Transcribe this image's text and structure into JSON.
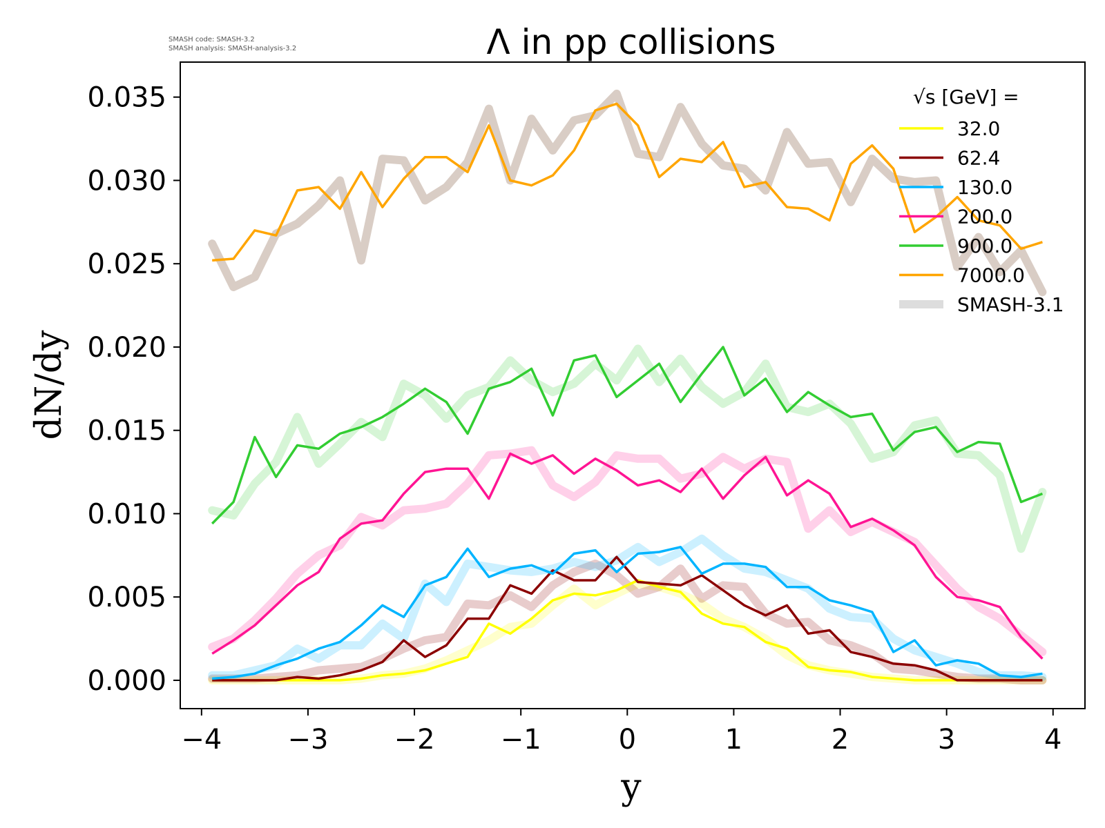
{
  "chart_data": {
    "type": "line",
    "title": "Λ in pp collisions",
    "xlabel": "y",
    "ylabel": "dN/dy",
    "xlim": [
      -4.2,
      4.3
    ],
    "ylim": [
      -0.0017,
      0.0371
    ],
    "xticks": [
      -4,
      -3,
      -2,
      -1,
      0,
      1,
      2,
      3,
      4
    ],
    "xtick_labels": [
      "−4",
      "−3",
      "−2",
      "−1",
      "0",
      "1",
      "2",
      "3",
      "4"
    ],
    "yticks": [
      0.0,
      0.005,
      0.01,
      0.015,
      0.02,
      0.025,
      0.03,
      0.035
    ],
    "ytick_labels": [
      "0.000",
      "0.005",
      "0.010",
      "0.015",
      "0.020",
      "0.025",
      "0.030",
      "0.035"
    ],
    "grid": false,
    "legend_position": "top-right",
    "legend_title": "√s  [GeV] =",
    "version_info": [
      "SMASH code:      SMASH-3.2",
      "SMASH analysis: SMASH-analysis-3.2"
    ],
    "x": [
      -3.9,
      -3.7,
      -3.5,
      -3.3,
      -3.1,
      -2.9,
      -2.7,
      -2.5,
      -2.3,
      -2.1,
      -1.9,
      -1.7,
      -1.5,
      -1.3,
      -1.1,
      -0.9,
      -0.7,
      -0.5,
      -0.3,
      -0.1,
      0.1,
      0.3,
      0.5,
      0.7,
      0.9,
      1.1,
      1.3,
      1.5,
      1.7,
      1.9,
      2.1,
      2.3,
      2.5,
      2.7,
      2.9,
      3.1,
      3.3,
      3.5,
      3.7,
      3.9
    ],
    "series": [
      {
        "name": "32.0",
        "color": "#ffff00",
        "values": [
          0,
          0,
          0,
          0,
          0,
          0,
          0,
          0.0001,
          0.0003,
          0.0004,
          0.0006,
          0.001,
          0.0014,
          0.0034,
          0.0028,
          0.0037,
          0.0048,
          0.0052,
          0.0051,
          0.0054,
          0.006,
          0.0056,
          0.0053,
          0.004,
          0.0034,
          0.0032,
          0.0023,
          0.0019,
          0.0008,
          0.0006,
          0.0005,
          0.0002,
          0.0001,
          0,
          0,
          0,
          0,
          0,
          0,
          0
        ]
      },
      {
        "name": "62.4",
        "color": "#8b0000",
        "values": [
          0,
          0,
          0,
          0,
          0.0002,
          0.0001,
          0.0003,
          0.0006,
          0.0011,
          0.0024,
          0.0014,
          0.0021,
          0.0037,
          0.0037,
          0.0057,
          0.0052,
          0.0066,
          0.006,
          0.006,
          0.0074,
          0.0059,
          0.0058,
          0.0057,
          0.0063,
          0.0054,
          0.0045,
          0.0039,
          0.0045,
          0.0028,
          0.003,
          0.0017,
          0.0014,
          0.001,
          0.0009,
          0.0006,
          0,
          0,
          0,
          0,
          0
        ]
      },
      {
        "name": "130.0",
        "color": "#00b4ff",
        "values": [
          0.0001,
          0.0002,
          0.0004,
          0.0009,
          0.0013,
          0.0019,
          0.0023,
          0.0033,
          0.0045,
          0.0038,
          0.0057,
          0.0062,
          0.0079,
          0.0062,
          0.0067,
          0.0069,
          0.0064,
          0.0076,
          0.0078,
          0.0065,
          0.0076,
          0.0077,
          0.008,
          0.0064,
          0.007,
          0.007,
          0.0068,
          0.0056,
          0.0056,
          0.0048,
          0.0045,
          0.0041,
          0.0017,
          0.0024,
          0.0009,
          0.0012,
          0.001,
          0.0003,
          0.0002,
          0.0004
        ]
      },
      {
        "name": "200.0",
        "color": "#ff1493",
        "values": [
          0.0016,
          0.0024,
          0.0033,
          0.0045,
          0.0057,
          0.0065,
          0.0085,
          0.0094,
          0.0096,
          0.0112,
          0.0125,
          0.0127,
          0.0127,
          0.0109,
          0.0136,
          0.013,
          0.0135,
          0.0124,
          0.0133,
          0.0126,
          0.0117,
          0.012,
          0.0113,
          0.0127,
          0.0109,
          0.0123,
          0.0134,
          0.0111,
          0.012,
          0.0112,
          0.0092,
          0.0097,
          0.009,
          0.0081,
          0.0062,
          0.005,
          0.0048,
          0.0044,
          0.0026,
          0.0013
        ]
      },
      {
        "name": "900.0",
        "color": "#32cd32",
        "values": [
          0.0094,
          0.0107,
          0.0146,
          0.0122,
          0.0141,
          0.0139,
          0.0148,
          0.0152,
          0.0158,
          0.0166,
          0.0175,
          0.0167,
          0.0148,
          0.0175,
          0.0179,
          0.0187,
          0.0159,
          0.0192,
          0.0195,
          0.017,
          0.018,
          0.019,
          0.0167,
          0.0184,
          0.02,
          0.0171,
          0.0181,
          0.0161,
          0.0173,
          0.0165,
          0.0158,
          0.016,
          0.0138,
          0.0149,
          0.0152,
          0.0137,
          0.0143,
          0.0142,
          0.0107,
          0.0112
        ]
      },
      {
        "name": "7000.0",
        "color": "#ffa500",
        "values": [
          0.0252,
          0.0253,
          0.027,
          0.0267,
          0.0294,
          0.0296,
          0.0283,
          0.0305,
          0.0284,
          0.0301,
          0.0314,
          0.0314,
          0.0305,
          0.0333,
          0.03,
          0.0297,
          0.0303,
          0.0318,
          0.0342,
          0.0346,
          0.0333,
          0.0302,
          0.0313,
          0.0311,
          0.0323,
          0.0296,
          0.0299,
          0.0284,
          0.0283,
          0.0276,
          0.031,
          0.0321,
          0.0307,
          0.0269,
          0.0278,
          0.029,
          0.0276,
          0.0273,
          0.0259,
          0.0263
        ]
      }
    ],
    "reference_series": {
      "name": "SMASH-3.1",
      "color": "#dddddd",
      "data": {
        "32.0": [
          0,
          0,
          0,
          0,
          0,
          0,
          0,
          0.0001,
          0.0003,
          0.0004,
          0.0007,
          0.0012,
          0.0018,
          0.0024,
          0.0032,
          0.0034,
          0.0045,
          0.0055,
          0.0045,
          0.0052,
          0.0058,
          0.0056,
          0.0052,
          0.0046,
          0.0037,
          0.0032,
          0.0025,
          0.0015,
          0.0009,
          0.0006,
          0.0004,
          0.0002,
          0.0001,
          0,
          0,
          0,
          0,
          0,
          0,
          0
        ],
        "62.4": [
          0.0001,
          0.0001,
          0.0001,
          0.0002,
          0.0003,
          0.0006,
          0.0007,
          0.0008,
          0.0013,
          0.0019,
          0.0024,
          0.0026,
          0.0046,
          0.0045,
          0.0051,
          0.0044,
          0.0057,
          0.0065,
          0.007,
          0.0063,
          0.0052,
          0.0056,
          0.0067,
          0.0049,
          0.0057,
          0.0056,
          0.004,
          0.0034,
          0.0035,
          0.0024,
          0.0021,
          0.0016,
          0.0007,
          0.0006,
          0.0004,
          0.0002,
          0.0001,
          0.0001,
          0,
          0
        ],
        "130.0": [
          0.0003,
          0.0003,
          0.0006,
          0.0009,
          0.0019,
          0.0013,
          0.0021,
          0.0021,
          0.0034,
          0.0025,
          0.0058,
          0.0047,
          0.007,
          0.0068,
          0.0066,
          0.0065,
          0.0067,
          0.0071,
          0.0068,
          0.0072,
          0.008,
          0.0071,
          0.0077,
          0.0085,
          0.0075,
          0.0067,
          0.0065,
          0.006,
          0.0055,
          0.0043,
          0.0038,
          0.0037,
          0.0025,
          0.0018,
          0.0014,
          0.001,
          0.0005,
          0.0003,
          0.0003,
          0.0002
        ],
        "200.0": [
          0.002,
          0.0025,
          0.0036,
          0.0049,
          0.0064,
          0.0075,
          0.0081,
          0.0098,
          0.0093,
          0.0102,
          0.0103,
          0.0106,
          0.0118,
          0.0135,
          0.0136,
          0.0138,
          0.0117,
          0.011,
          0.0119,
          0.0135,
          0.0133,
          0.0133,
          0.0121,
          0.0124,
          0.0134,
          0.0127,
          0.0133,
          0.0131,
          0.0091,
          0.0102,
          0.0089,
          0.0095,
          0.0089,
          0.0083,
          0.0069,
          0.0055,
          0.0044,
          0.0037,
          0.0027,
          0.0017
        ],
        "900.0": [
          0.0102,
          0.0099,
          0.0118,
          0.0131,
          0.0158,
          0.013,
          0.0142,
          0.0155,
          0.0146,
          0.0178,
          0.0171,
          0.0157,
          0.0171,
          0.0176,
          0.0192,
          0.018,
          0.0173,
          0.0178,
          0.019,
          0.018,
          0.0199,
          0.0179,
          0.0193,
          0.0176,
          0.0166,
          0.0173,
          0.019,
          0.0164,
          0.0161,
          0.0166,
          0.0154,
          0.0133,
          0.0137,
          0.0153,
          0.0156,
          0.0136,
          0.0135,
          0.0123,
          0.0079,
          0.0113
        ],
        "7000.0": [
          0.0262,
          0.0236,
          0.0242,
          0.0268,
          0.0274,
          0.0285,
          0.03,
          0.0252,
          0.0313,
          0.0312,
          0.0288,
          0.0296,
          0.0311,
          0.0343,
          0.03,
          0.0337,
          0.0318,
          0.0336,
          0.0339,
          0.0352,
          0.0316,
          0.0314,
          0.0344,
          0.0322,
          0.0309,
          0.0307,
          0.0294,
          0.0329,
          0.031,
          0.0311,
          0.0287,
          0.0313,
          0.0301,
          0.0299,
          0.03,
          0.0248,
          0.0266,
          0.0245,
          0.0258,
          0.0233
        ]
      }
    }
  }
}
